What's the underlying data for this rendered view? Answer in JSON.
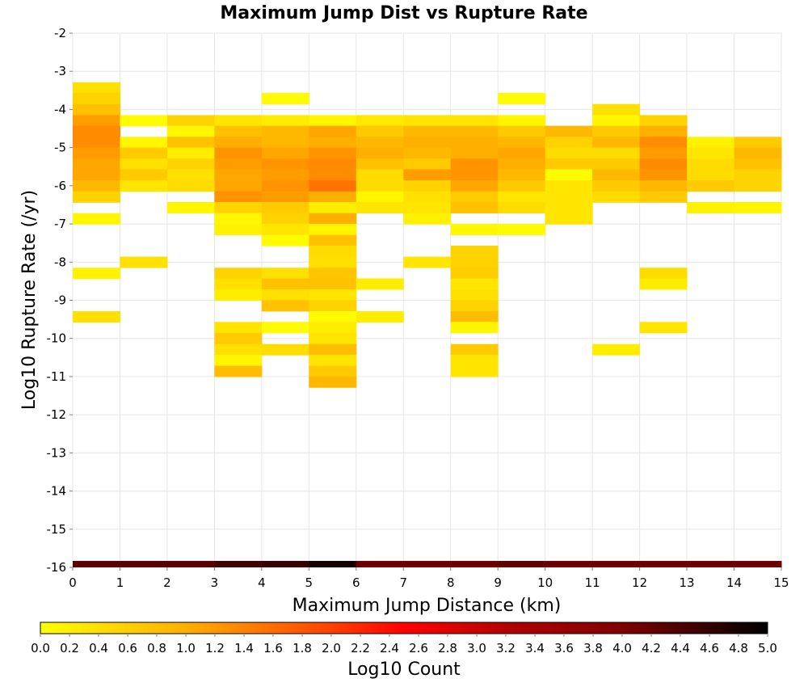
{
  "chart_data": {
    "type": "heatmap",
    "title": "Maximum Jump Dist vs Rupture Rate",
    "xlabel": "Maximum Jump Distance (km)",
    "ylabel": "Log10 Rupture Rate (/yr)",
    "xlim": [
      0,
      15
    ],
    "ylim": [
      -16,
      -2
    ],
    "x_ticks": [
      "0",
      "1",
      "2",
      "3",
      "4",
      "5",
      "6",
      "7",
      "8",
      "9",
      "10",
      "11",
      "12",
      "13",
      "14",
      "15"
    ],
    "y_ticks": [
      "-2",
      "-3",
      "-4",
      "-5",
      "-6",
      "-7",
      "-8",
      "-9",
      "-10",
      "-11",
      "-12",
      "-13",
      "-14",
      "-15",
      "-16"
    ],
    "grid": true,
    "bin_width_x": 1,
    "bin_height_y": 0.286,
    "colorbar": {
      "label": "Log10 Count",
      "min": 0.0,
      "max": 5.0,
      "ticks": [
        "0.0",
        "0.2",
        "0.4",
        "0.6",
        "0.8",
        "1.0",
        "1.2",
        "1.4",
        "1.6",
        "1.8",
        "2.0",
        "2.2",
        "2.4",
        "2.6",
        "2.8",
        "3.0",
        "3.2",
        "3.4",
        "3.6",
        "3.8",
        "4.0",
        "4.2",
        "4.4",
        "4.6",
        "4.8",
        "5.0"
      ],
      "colormap": [
        "#ffff00",
        "#ffc000",
        "#ff8000",
        "#ff0000",
        "#c00000",
        "#800000",
        "#400000",
        "#000000"
      ]
    },
    "cells": [
      {
        "x": 0,
        "y": -3.43,
        "v": 0.35
      },
      {
        "x": 0,
        "y": -3.71,
        "v": 0.5
      },
      {
        "x": 0,
        "y": -4.0,
        "v": 0.7
      },
      {
        "x": 0,
        "y": -4.29,
        "v": 1.1
      },
      {
        "x": 0,
        "y": -4.57,
        "v": 1.3
      },
      {
        "x": 0,
        "y": -4.86,
        "v": 1.3
      },
      {
        "x": 0,
        "y": -5.14,
        "v": 1.1
      },
      {
        "x": 0,
        "y": -5.43,
        "v": 1.0
      },
      {
        "x": 0,
        "y": -5.71,
        "v": 1.0
      },
      {
        "x": 0,
        "y": -6.0,
        "v": 0.8
      },
      {
        "x": 0,
        "y": -6.29,
        "v": 0.5
      },
      {
        "x": 0,
        "y": -6.86,
        "v": 0.1
      },
      {
        "x": 0,
        "y": -8.29,
        "v": 0.15
      },
      {
        "x": 0,
        "y": -9.43,
        "v": 0.35
      },
      {
        "x": 1,
        "y": -4.29,
        "v": 0.05
      },
      {
        "x": 1,
        "y": -4.86,
        "v": 0.1
      },
      {
        "x": 1,
        "y": -5.14,
        "v": 0.6
      },
      {
        "x": 1,
        "y": -5.43,
        "v": 0.35
      },
      {
        "x": 1,
        "y": -5.71,
        "v": 0.6
      },
      {
        "x": 1,
        "y": -6.0,
        "v": 0.3
      },
      {
        "x": 1,
        "y": -8.0,
        "v": 0.35
      },
      {
        "x": 2,
        "y": -4.29,
        "v": 0.5
      },
      {
        "x": 2,
        "y": -4.57,
        "v": 0.1
      },
      {
        "x": 2,
        "y": -4.86,
        "v": 0.7
      },
      {
        "x": 2,
        "y": -5.14,
        "v": 0.2
      },
      {
        "x": 2,
        "y": -5.43,
        "v": 0.5
      },
      {
        "x": 2,
        "y": -5.71,
        "v": 0.35
      },
      {
        "x": 2,
        "y": -6.0,
        "v": 0.4
      },
      {
        "x": 2,
        "y": -6.57,
        "v": 0.1
      },
      {
        "x": 3,
        "y": -4.29,
        "v": 0.3
      },
      {
        "x": 3,
        "y": -4.57,
        "v": 0.7
      },
      {
        "x": 3,
        "y": -4.86,
        "v": 0.9
      },
      {
        "x": 3,
        "y": -5.14,
        "v": 1.2
      },
      {
        "x": 3,
        "y": -5.43,
        "v": 1.1
      },
      {
        "x": 3,
        "y": -5.71,
        "v": 1.0
      },
      {
        "x": 3,
        "y": -6.0,
        "v": 1.0
      },
      {
        "x": 3,
        "y": -6.29,
        "v": 1.2
      },
      {
        "x": 3,
        "y": -6.57,
        "v": 0.5
      },
      {
        "x": 3,
        "y": -6.86,
        "v": 0.1
      },
      {
        "x": 3,
        "y": -7.14,
        "v": 0.15
      },
      {
        "x": 3,
        "y": -8.29,
        "v": 0.5
      },
      {
        "x": 3,
        "y": -8.57,
        "v": 0.35
      },
      {
        "x": 3,
        "y": -8.86,
        "v": 0.2
      },
      {
        "x": 3,
        "y": -9.71,
        "v": 0.3
      },
      {
        "x": 3,
        "y": -10.0,
        "v": 0.6
      },
      {
        "x": 3,
        "y": -10.29,
        "v": 0.35
      },
      {
        "x": 3,
        "y": -10.57,
        "v": 0.1
      },
      {
        "x": 3,
        "y": -10.86,
        "v": 0.75
      },
      {
        "x": 4,
        "y": -3.71,
        "v": 0.05
      },
      {
        "x": 4,
        "y": -4.29,
        "v": 0.2
      },
      {
        "x": 4,
        "y": -4.57,
        "v": 0.8
      },
      {
        "x": 4,
        "y": -4.86,
        "v": 0.8
      },
      {
        "x": 4,
        "y": -5.14,
        "v": 1.0
      },
      {
        "x": 4,
        "y": -5.43,
        "v": 1.2
      },
      {
        "x": 4,
        "y": -5.71,
        "v": 1.1
      },
      {
        "x": 4,
        "y": -6.0,
        "v": 1.2
      },
      {
        "x": 4,
        "y": -6.29,
        "v": 1.1
      },
      {
        "x": 4,
        "y": -6.57,
        "v": 0.6
      },
      {
        "x": 4,
        "y": -6.86,
        "v": 0.5
      },
      {
        "x": 4,
        "y": -7.14,
        "v": 0.3
      },
      {
        "x": 4,
        "y": -7.43,
        "v": 0.05
      },
      {
        "x": 4,
        "y": -8.29,
        "v": 0.35
      },
      {
        "x": 4,
        "y": -8.57,
        "v": 0.7
      },
      {
        "x": 4,
        "y": -8.86,
        "v": 0.35
      },
      {
        "x": 4,
        "y": -9.14,
        "v": 0.7
      },
      {
        "x": 4,
        "y": -9.71,
        "v": 0.05
      },
      {
        "x": 4,
        "y": -10.29,
        "v": 0.4
      },
      {
        "x": 5,
        "y": -4.29,
        "v": 0.1
      },
      {
        "x": 5,
        "y": -4.57,
        "v": 1.0
      },
      {
        "x": 5,
        "y": -4.86,
        "v": 0.9
      },
      {
        "x": 5,
        "y": -5.14,
        "v": 1.2
      },
      {
        "x": 5,
        "y": -5.43,
        "v": 1.3
      },
      {
        "x": 5,
        "y": -5.71,
        "v": 1.3
      },
      {
        "x": 5,
        "y": -6.0,
        "v": 1.5
      },
      {
        "x": 5,
        "y": -6.29,
        "v": 0.9
      },
      {
        "x": 5,
        "y": -6.57,
        "v": 0.2
      },
      {
        "x": 5,
        "y": -6.86,
        "v": 0.9
      },
      {
        "x": 5,
        "y": -7.14,
        "v": 0.1
      },
      {
        "x": 5,
        "y": -7.43,
        "v": 0.7
      },
      {
        "x": 5,
        "y": -7.71,
        "v": 0.4
      },
      {
        "x": 5,
        "y": -8.0,
        "v": 0.35
      },
      {
        "x": 5,
        "y": -8.29,
        "v": 0.65
      },
      {
        "x": 5,
        "y": -8.57,
        "v": 0.7
      },
      {
        "x": 5,
        "y": -8.86,
        "v": 0.3
      },
      {
        "x": 5,
        "y": -9.14,
        "v": 0.5
      },
      {
        "x": 5,
        "y": -9.43,
        "v": 0.05
      },
      {
        "x": 5,
        "y": -9.71,
        "v": 0.2
      },
      {
        "x": 5,
        "y": -10.0,
        "v": 0.3
      },
      {
        "x": 5,
        "y": -10.29,
        "v": 0.75
      },
      {
        "x": 5,
        "y": -10.57,
        "v": 0.3
      },
      {
        "x": 5,
        "y": -10.86,
        "v": 0.6
      },
      {
        "x": 5,
        "y": -11.14,
        "v": 0.8
      },
      {
        "x": 6,
        "y": -4.29,
        "v": 0.25
      },
      {
        "x": 6,
        "y": -4.57,
        "v": 0.6
      },
      {
        "x": 6,
        "y": -4.86,
        "v": 0.8
      },
      {
        "x": 6,
        "y": -5.14,
        "v": 0.9
      },
      {
        "x": 6,
        "y": -5.43,
        "v": 0.7
      },
      {
        "x": 6,
        "y": -5.71,
        "v": 0.4
      },
      {
        "x": 6,
        "y": -6.0,
        "v": 0.4
      },
      {
        "x": 6,
        "y": -6.29,
        "v": 0.1
      },
      {
        "x": 6,
        "y": -6.57,
        "v": 0.3
      },
      {
        "x": 6,
        "y": -8.57,
        "v": 0.2
      },
      {
        "x": 6,
        "y": -9.43,
        "v": 0.2
      },
      {
        "x": 7,
        "y": -4.29,
        "v": 0.3
      },
      {
        "x": 7,
        "y": -4.57,
        "v": 0.8
      },
      {
        "x": 7,
        "y": -4.86,
        "v": 0.9
      },
      {
        "x": 7,
        "y": -5.14,
        "v": 0.8
      },
      {
        "x": 7,
        "y": -5.43,
        "v": 0.6
      },
      {
        "x": 7,
        "y": -5.71,
        "v": 1.1
      },
      {
        "x": 7,
        "y": -6.0,
        "v": 0.5
      },
      {
        "x": 7,
        "y": -6.29,
        "v": 0.35
      },
      {
        "x": 7,
        "y": -6.57,
        "v": 0.3
      },
      {
        "x": 7,
        "y": -6.86,
        "v": 0.15
      },
      {
        "x": 7,
        "y": -8.0,
        "v": 0.3
      },
      {
        "x": 8,
        "y": -4.29,
        "v": 0.3
      },
      {
        "x": 8,
        "y": -4.57,
        "v": 0.8
      },
      {
        "x": 8,
        "y": -4.86,
        "v": 0.9
      },
      {
        "x": 8,
        "y": -5.14,
        "v": 0.9
      },
      {
        "x": 8,
        "y": -5.43,
        "v": 1.2
      },
      {
        "x": 8,
        "y": -5.71,
        "v": 1.2
      },
      {
        "x": 8,
        "y": -6.0,
        "v": 1.0
      },
      {
        "x": 8,
        "y": -6.29,
        "v": 0.6
      },
      {
        "x": 8,
        "y": -6.57,
        "v": 0.7
      },
      {
        "x": 8,
        "y": -7.14,
        "v": 0.1
      },
      {
        "x": 8,
        "y": -7.71,
        "v": 0.5
      },
      {
        "x": 8,
        "y": -8.0,
        "v": 0.5
      },
      {
        "x": 8,
        "y": -8.29,
        "v": 0.55
      },
      {
        "x": 8,
        "y": -8.57,
        "v": 0.3
      },
      {
        "x": 8,
        "y": -8.86,
        "v": 0.35
      },
      {
        "x": 8,
        "y": -9.14,
        "v": 0.5
      },
      {
        "x": 8,
        "y": -9.43,
        "v": 0.75
      },
      {
        "x": 8,
        "y": -9.71,
        "v": 0.1
      },
      {
        "x": 8,
        "y": -10.29,
        "v": 0.6
      },
      {
        "x": 8,
        "y": -10.57,
        "v": 0.3
      },
      {
        "x": 8,
        "y": -10.86,
        "v": 0.3
      },
      {
        "x": 9,
        "y": -3.71,
        "v": 0.05
      },
      {
        "x": 9,
        "y": -4.29,
        "v": 0.1
      },
      {
        "x": 9,
        "y": -4.57,
        "v": 0.6
      },
      {
        "x": 9,
        "y": -4.86,
        "v": 0.8
      },
      {
        "x": 9,
        "y": -5.14,
        "v": 1.0
      },
      {
        "x": 9,
        "y": -5.43,
        "v": 0.9
      },
      {
        "x": 9,
        "y": -5.71,
        "v": 0.8
      },
      {
        "x": 9,
        "y": -6.0,
        "v": 0.6
      },
      {
        "x": 9,
        "y": -6.29,
        "v": 0.3
      },
      {
        "x": 9,
        "y": -6.57,
        "v": 0.4
      },
      {
        "x": 9,
        "y": -7.14,
        "v": 0.05
      },
      {
        "x": 10,
        "y": -4.57,
        "v": 0.8
      },
      {
        "x": 10,
        "y": -4.86,
        "v": 0.5
      },
      {
        "x": 10,
        "y": -5.14,
        "v": 0.4
      },
      {
        "x": 10,
        "y": -5.43,
        "v": 0.6
      },
      {
        "x": 10,
        "y": -5.71,
        "v": 0.05
      },
      {
        "x": 10,
        "y": -6.0,
        "v": 0.3
      },
      {
        "x": 10,
        "y": -6.29,
        "v": 0.3
      },
      {
        "x": 10,
        "y": -6.57,
        "v": 0.3
      },
      {
        "x": 10,
        "y": -6.86,
        "v": 0.3
      },
      {
        "x": 11,
        "y": -4.0,
        "v": 0.35
      },
      {
        "x": 11,
        "y": -4.29,
        "v": 0.1
      },
      {
        "x": 11,
        "y": -4.57,
        "v": 0.6
      },
      {
        "x": 11,
        "y": -4.86,
        "v": 0.8
      },
      {
        "x": 11,
        "y": -5.14,
        "v": 0.4
      },
      {
        "x": 11,
        "y": -5.43,
        "v": 0.6
      },
      {
        "x": 11,
        "y": -5.71,
        "v": 0.8
      },
      {
        "x": 11,
        "y": -6.0,
        "v": 0.6
      },
      {
        "x": 11,
        "y": -6.29,
        "v": 0.4
      },
      {
        "x": 11,
        "y": -10.29,
        "v": 0.2
      },
      {
        "x": 12,
        "y": -4.29,
        "v": 0.5
      },
      {
        "x": 12,
        "y": -4.57,
        "v": 0.9
      },
      {
        "x": 12,
        "y": -4.86,
        "v": 1.3
      },
      {
        "x": 12,
        "y": -5.14,
        "v": 1.1
      },
      {
        "x": 12,
        "y": -5.43,
        "v": 1.3
      },
      {
        "x": 12,
        "y": -5.71,
        "v": 1.2
      },
      {
        "x": 12,
        "y": -6.0,
        "v": 0.8
      },
      {
        "x": 12,
        "y": -6.29,
        "v": 0.6
      },
      {
        "x": 12,
        "y": -8.29,
        "v": 0.4
      },
      {
        "x": 12,
        "y": -8.57,
        "v": 0.2
      },
      {
        "x": 12,
        "y": -9.71,
        "v": 0.3
      },
      {
        "x": 13,
        "y": -4.86,
        "v": 0.15
      },
      {
        "x": 13,
        "y": -5.14,
        "v": 0.3
      },
      {
        "x": 13,
        "y": -5.43,
        "v": 0.4
      },
      {
        "x": 13,
        "y": -5.71,
        "v": 0.4
      },
      {
        "x": 13,
        "y": -6.0,
        "v": 0.6
      },
      {
        "x": 13,
        "y": -6.57,
        "v": 0.15
      },
      {
        "x": 14,
        "y": -4.86,
        "v": 0.6
      },
      {
        "x": 14,
        "y": -5.14,
        "v": 0.8
      },
      {
        "x": 14,
        "y": -5.43,
        "v": 0.7
      },
      {
        "x": 14,
        "y": -5.71,
        "v": 0.5
      },
      {
        "x": 14,
        "y": -6.0,
        "v": 0.5
      },
      {
        "x": 14,
        "y": -6.57,
        "v": 0.1
      }
    ],
    "bottom_band": [
      {
        "x": 0,
        "v": 4.0
      },
      {
        "x": 1,
        "v": 4.0
      },
      {
        "x": 2,
        "v": 4.0
      },
      {
        "x": 3,
        "v": 4.3
      },
      {
        "x": 4,
        "v": 4.4
      },
      {
        "x": 5,
        "v": 4.8
      },
      {
        "x": 6,
        "v": 3.8
      },
      {
        "x": 7,
        "v": 3.8
      },
      {
        "x": 8,
        "v": 3.8
      },
      {
        "x": 9,
        "v": 3.9
      },
      {
        "x": 10,
        "v": 3.8
      },
      {
        "x": 11,
        "v": 3.8
      },
      {
        "x": 12,
        "v": 3.8
      },
      {
        "x": 13,
        "v": 3.8
      },
      {
        "x": 14,
        "v": 3.8
      }
    ]
  }
}
